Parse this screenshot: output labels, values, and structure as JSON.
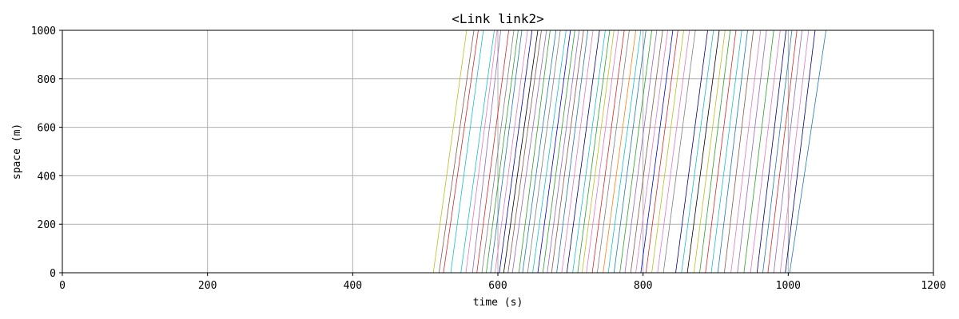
{
  "chart_data": {
    "type": "line",
    "title": "<Link link2>",
    "xlabel": "time (s)",
    "ylabel": "space (m)",
    "xlim": [
      0,
      1200
    ],
    "ylim": [
      0,
      1000
    ],
    "xticks": [
      0,
      200,
      400,
      600,
      800,
      1000,
      1200
    ],
    "yticks": [
      0,
      200,
      400,
      600,
      800,
      1000
    ],
    "grid": true,
    "legend": "none",
    "series": [
      {
        "color": "#bcbd22",
        "x": [
          511,
          557
        ],
        "y": [
          0,
          1000
        ]
      },
      {
        "color": "#8c564b",
        "x": [
          519,
          567
        ],
        "y": [
          0,
          1000
        ]
      },
      {
        "color": "#d62728",
        "x": [
          525,
          573
        ],
        "y": [
          0,
          1000
        ]
      },
      {
        "color": "#17becf",
        "x": [
          535,
          580
        ],
        "y": [
          0,
          1000
        ]
      },
      {
        "color": "#17becf",
        "x": [
          549,
          595
        ],
        "y": [
          0,
          1000
        ]
      },
      {
        "color": "#e377c2",
        "x": [
          556,
          599
        ],
        "y": [
          0,
          1000
        ]
      },
      {
        "color": "#9467bd",
        "x": [
          565,
          604
        ],
        "y": [
          0,
          1000
        ]
      },
      {
        "color": "#d62728",
        "x": [
          571,
          615
        ],
        "y": [
          0,
          1000
        ]
      },
      {
        "color": "#7f7f7f",
        "x": [
          578,
          622
        ],
        "y": [
          0,
          1000
        ]
      },
      {
        "color": "#2ca02c",
        "x": [
          584,
          628
        ],
        "y": [
          0,
          1000
        ]
      },
      {
        "color": "#1f77b4",
        "x": [
          590,
          633
        ],
        "y": [
          0,
          1000
        ]
      },
      {
        "color": "#e377c2",
        "x": [
          596,
          641
        ],
        "y": [
          0,
          1000
        ]
      },
      {
        "color": "#0000aa",
        "x": [
          602,
          647
        ],
        "y": [
          0,
          1000
        ]
      },
      {
        "color": "#000000",
        "x": [
          608,
          655
        ],
        "y": [
          0,
          1000
        ]
      },
      {
        "color": "#8c564b",
        "x": [
          614,
          660
        ],
        "y": [
          0,
          1000
        ]
      },
      {
        "color": "#9467bd",
        "x": [
          620,
          667
        ],
        "y": [
          0,
          1000
        ]
      },
      {
        "color": "#2ca02c",
        "x": [
          629,
          672
        ],
        "y": [
          0,
          1000
        ]
      },
      {
        "color": "#1f77b4",
        "x": [
          634,
          680
        ],
        "y": [
          0,
          1000
        ]
      },
      {
        "color": "#7f7f7f",
        "x": [
          641,
          686
        ],
        "y": [
          0,
          1000
        ]
      },
      {
        "color": "#17becf",
        "x": [
          648,
          694
        ],
        "y": [
          0,
          1000
        ]
      },
      {
        "color": "#0000cc",
        "x": [
          655,
          700
        ],
        "y": [
          0,
          1000
        ]
      },
      {
        "color": "#2ca02c",
        "x": [
          662,
          706
        ],
        "y": [
          0,
          1000
        ]
      },
      {
        "color": "#9467bd",
        "x": [
          668,
          712
        ],
        "y": [
          0,
          1000
        ]
      },
      {
        "color": "#8c564b",
        "x": [
          674,
          718
        ],
        "y": [
          0,
          1000
        ]
      },
      {
        "color": "#1f77b4",
        "x": [
          681,
          724
        ],
        "y": [
          0,
          1000
        ]
      },
      {
        "color": "#e377c2",
        "x": [
          688,
          731
        ],
        "y": [
          0,
          1000
        ]
      },
      {
        "color": "#000080",
        "x": [
          695,
          740
        ],
        "y": [
          0,
          1000
        ]
      },
      {
        "color": "#17becf",
        "x": [
          703,
          748
        ],
        "y": [
          0,
          1000
        ]
      },
      {
        "color": "#2ca02c",
        "x": [
          710,
          754
        ],
        "y": [
          0,
          1000
        ]
      },
      {
        "color": "#bcbd22",
        "x": [
          716,
          760
        ],
        "y": [
          0,
          1000
        ]
      },
      {
        "color": "#e377c2",
        "x": [
          722,
          766
        ],
        "y": [
          0,
          1000
        ]
      },
      {
        "color": "#d62728",
        "x": [
          730,
          774
        ],
        "y": [
          0,
          1000
        ]
      },
      {
        "color": "#7f7f7f",
        "x": [
          737,
          781
        ],
        "y": [
          0,
          1000
        ]
      },
      {
        "color": "#ff7f0e",
        "x": [
          745,
          790
        ],
        "y": [
          0,
          1000
        ]
      },
      {
        "color": "#17becf",
        "x": [
          752,
          797
        ],
        "y": [
          0,
          1000
        ]
      },
      {
        "color": "#1f77b4",
        "x": [
          760,
          804
        ],
        "y": [
          0,
          1000
        ]
      },
      {
        "color": "#2ca02c",
        "x": [
          768,
          812
        ],
        "y": [
          0,
          1000
        ]
      },
      {
        "color": "#9467bd",
        "x": [
          775,
          819
        ],
        "y": [
          0,
          1000
        ]
      },
      {
        "color": "#8c564b",
        "x": [
          783,
          827
        ],
        "y": [
          0,
          1000
        ]
      },
      {
        "color": "#e377c2",
        "x": [
          790,
          834
        ],
        "y": [
          0,
          1000
        ]
      },
      {
        "color": "#0000cc",
        "x": [
          797,
          841
        ],
        "y": [
          0,
          1000
        ]
      },
      {
        "color": "#d62728",
        "x": [
          804,
          848
        ],
        "y": [
          0,
          1000
        ]
      },
      {
        "color": "#bcbd22",
        "x": [
          812,
          856
        ],
        "y": [
          0,
          1000
        ]
      },
      {
        "color": "#e377c2",
        "x": [
          820,
          864
        ],
        "y": [
          0,
          1000
        ]
      },
      {
        "color": "#7f7f7f",
        "x": [
          828,
          872
        ],
        "y": [
          0,
          1000
        ]
      },
      {
        "color": "#000080",
        "x": [
          845,
          889
        ],
        "y": [
          0,
          1000
        ]
      },
      {
        "color": "#17becf",
        "x": [
          853,
          897
        ],
        "y": [
          0,
          1000
        ]
      },
      {
        "color": "#000000",
        "x": [
          861,
          905
        ],
        "y": [
          0,
          1000
        ]
      },
      {
        "color": "#bcbd22",
        "x": [
          870,
          913
        ],
        "y": [
          0,
          1000
        ]
      },
      {
        "color": "#2ca02c",
        "x": [
          878,
          920
        ],
        "y": [
          0,
          1000
        ]
      },
      {
        "color": "#d62728",
        "x": [
          886,
          928
        ],
        "y": [
          0,
          1000
        ]
      },
      {
        "color": "#17becf",
        "x": [
          894,
          936
        ],
        "y": [
          0,
          1000
        ]
      },
      {
        "color": "#1f77b4",
        "x": [
          903,
          944
        ],
        "y": [
          0,
          1000
        ]
      },
      {
        "color": "#8c564b",
        "x": [
          912,
          952
        ],
        "y": [
          0,
          1000
        ]
      },
      {
        "color": "#e377c2",
        "x": [
          921,
          962
        ],
        "y": [
          0,
          1000
        ]
      },
      {
        "color": "#9467bd",
        "x": [
          930,
          970
        ],
        "y": [
          0,
          1000
        ]
      },
      {
        "color": "#2ca02c",
        "x": [
          939,
          980
        ],
        "y": [
          0,
          1000
        ]
      },
      {
        "color": "#e377c2",
        "x": [
          948,
          989
        ],
        "y": [
          0,
          1000
        ]
      },
      {
        "color": "#000080",
        "x": [
          957,
          997
        ],
        "y": [
          0,
          1000
        ]
      },
      {
        "color": "#1f77b4",
        "x": [
          965,
          1005
        ],
        "y": [
          0,
          1000
        ]
      },
      {
        "color": "#d62728",
        "x": [
          972,
          1012
        ],
        "y": [
          0,
          1000
        ]
      },
      {
        "color": "#9467bd",
        "x": [
          980,
          1019
        ],
        "y": [
          0,
          1000
        ]
      },
      {
        "color": "#e377c2",
        "x": [
          989,
          1028
        ],
        "y": [
          0,
          1000
        ]
      },
      {
        "color": "#000080",
        "x": [
          996,
          1037
        ],
        "y": [
          0,
          1000
        ]
      },
      {
        "color": "#1f77b4",
        "x": [
          1002,
          1052
        ],
        "y": [
          0,
          1000
        ]
      }
    ]
  }
}
